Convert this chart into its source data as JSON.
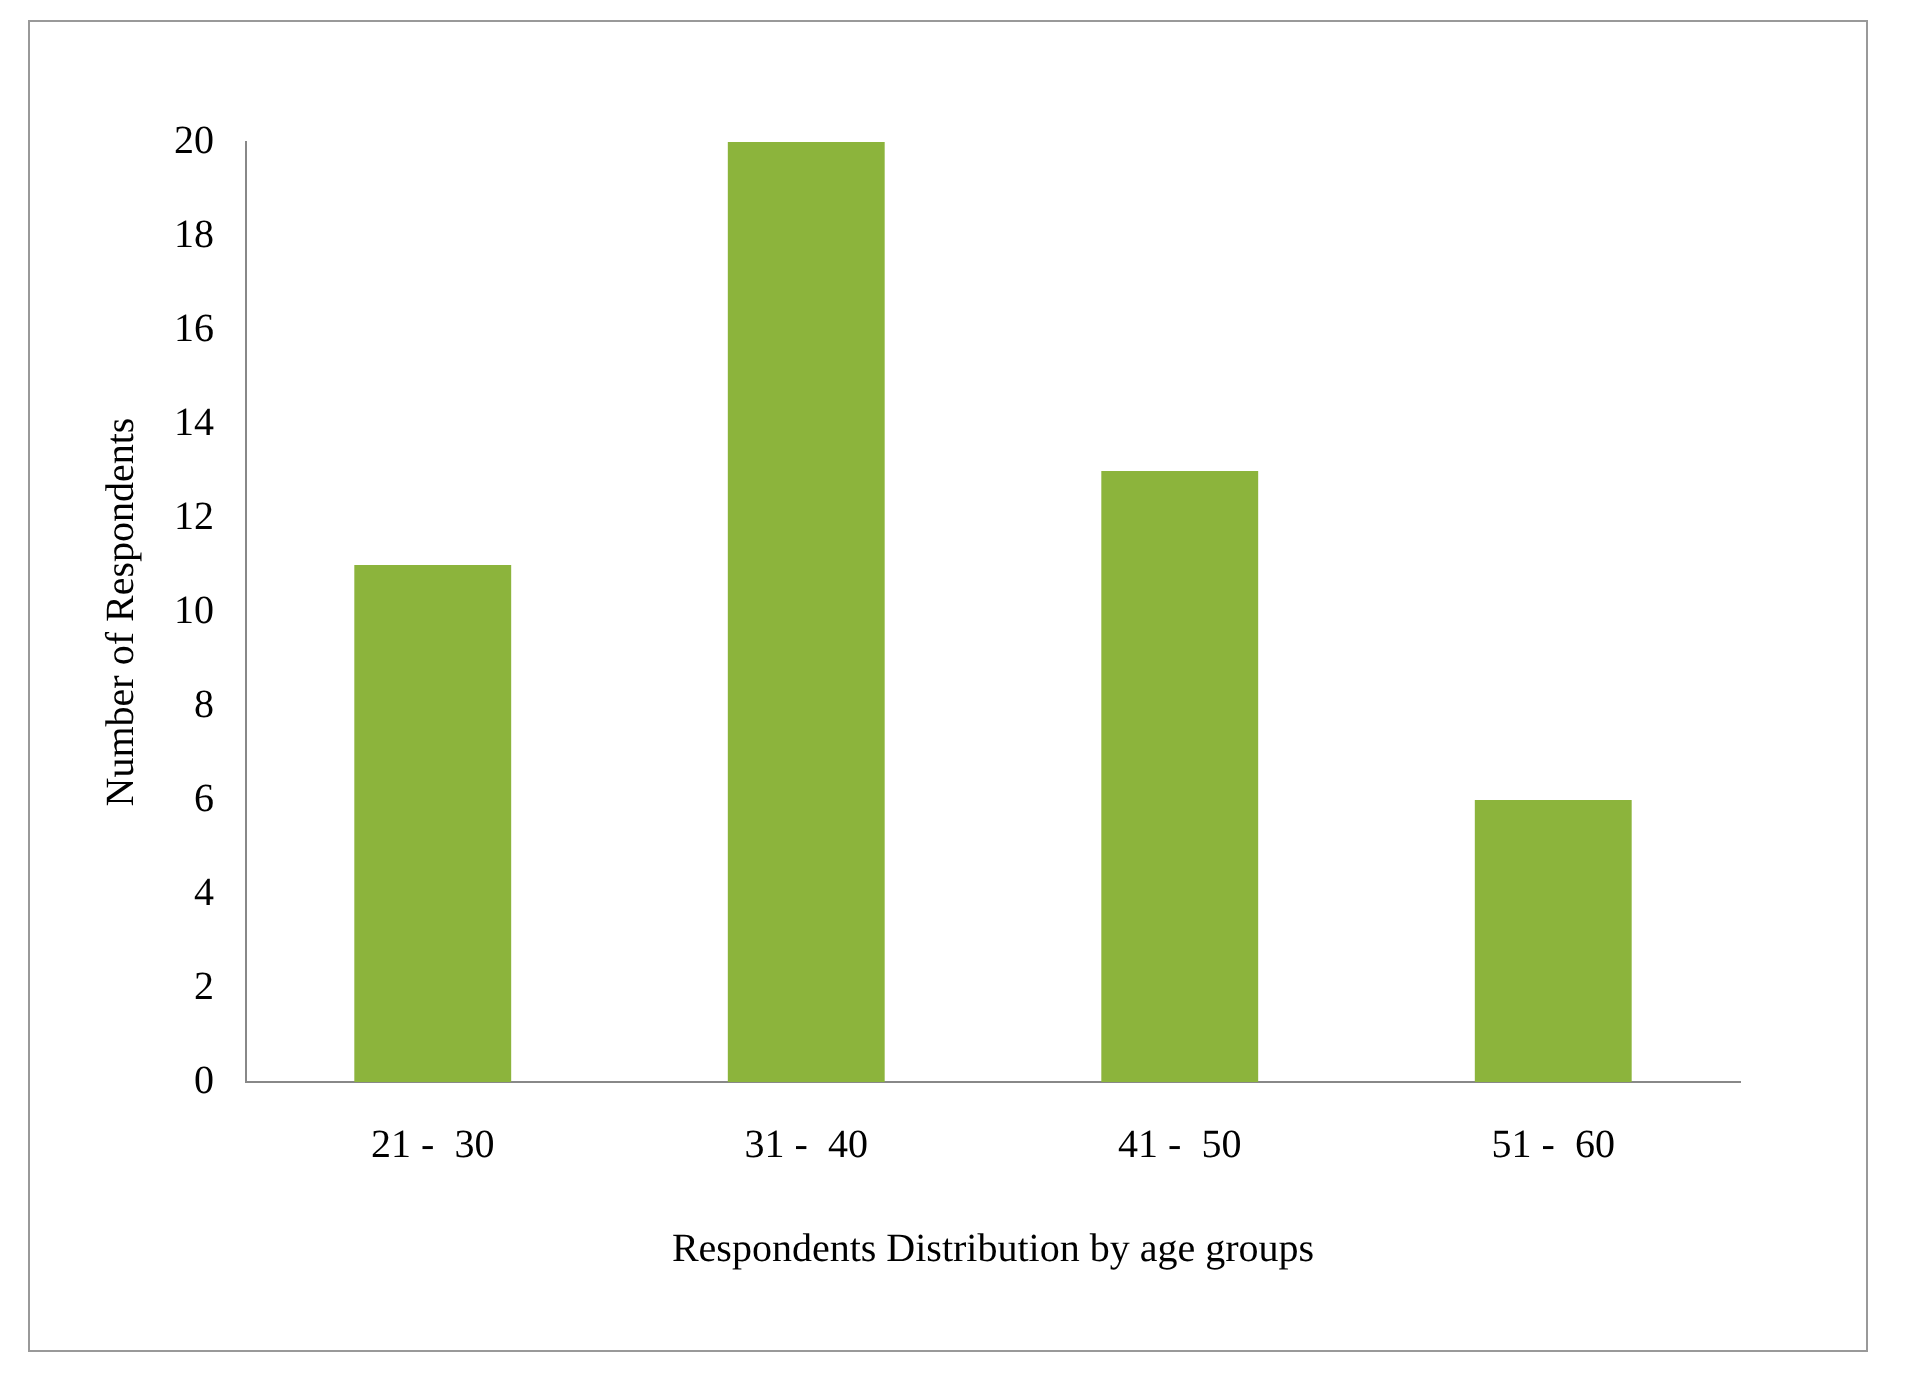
{
  "chart_data": {
    "type": "bar",
    "xlabel": "Respondents Distribution by age groups",
    "ylabel": "Number of Respondents",
    "categories": [
      "21 -  30",
      "31 -  40",
      "41 -  50",
      "51 -  60"
    ],
    "values": [
      11,
      20,
      13,
      6
    ],
    "color": "#8cb43c",
    "ylim": [
      0,
      20
    ],
    "yticks": [
      0,
      2,
      4,
      6,
      8,
      10,
      12,
      14,
      16,
      18,
      20
    ],
    "grid": false,
    "legend": false
  }
}
